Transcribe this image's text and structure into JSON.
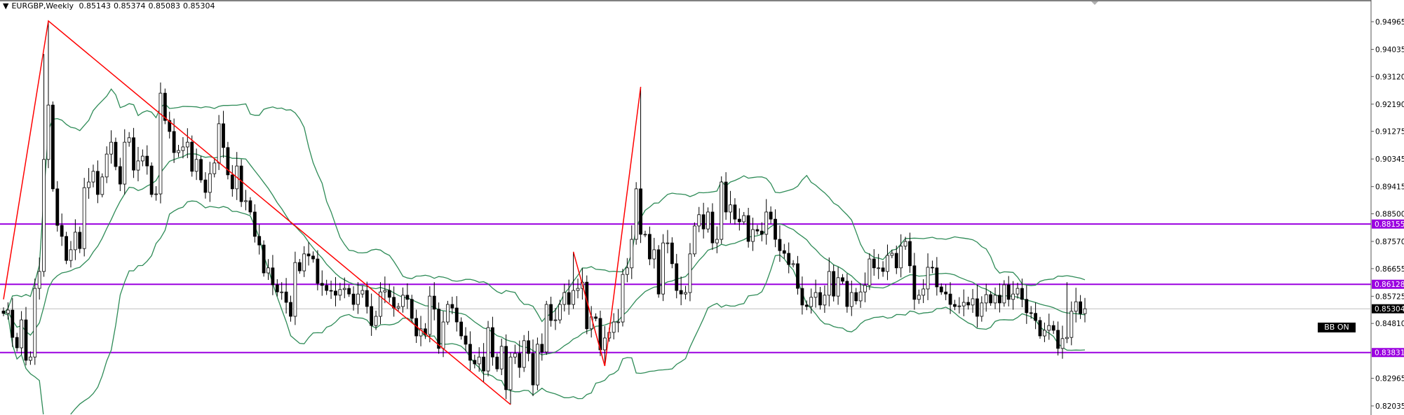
{
  "header": {
    "symbol": "EURGBP,Weekly",
    "ohlc": [
      "0.85143",
      "0.85374",
      "0.85083",
      "0.85304"
    ]
  },
  "badge": {
    "label": "BB ON"
  },
  "colors": {
    "level_line": "#9b00e0",
    "zigzag": "#ff0000",
    "bollinger": "#2e8b57",
    "bull_body": "#ffffff",
    "bear_body": "#000000",
    "current_price_line": "#c0c0c0"
  },
  "chart_data": {
    "type": "candlestick",
    "symbol": "EURGBP",
    "timeframe": "Weekly",
    "ylim": [
      0.818,
      0.957
    ],
    "y_ticks": [
      "0.94965",
      "0.94035",
      "0.93120",
      "0.92190",
      "0.91275",
      "0.90345",
      "0.89415",
      "0.88500",
      "0.87570",
      "0.86655",
      "0.85725",
      "0.84810",
      "0.82965",
      "0.82035"
    ],
    "last_price": "0.85304",
    "levels": [
      "0.88155",
      "0.86128",
      "0.83831"
    ],
    "closes": [
      0.8515,
      0.8526,
      0.8434,
      0.8399,
      0.8493,
      0.8357,
      0.8368,
      0.8599,
      0.8656,
      0.9033,
      0.9216,
      0.8934,
      0.8811,
      0.8774,
      0.8693,
      0.8729,
      0.8788,
      0.8733,
      0.8938,
      0.8957,
      0.8993,
      0.8915,
      0.8974,
      0.9051,
      0.9091,
      0.9009,
      0.895,
      0.9091,
      0.9106,
      0.8997,
      0.9028,
      0.9044,
      0.9011,
      0.8915,
      0.8917,
      0.9256,
      0.9164,
      0.9127,
      0.9056,
      0.9063,
      0.9075,
      0.9091,
      0.8993,
      0.9033,
      0.8964,
      0.8922,
      0.8985,
      0.9021,
      0.9153,
      0.9073,
      0.8981,
      0.8934,
      0.9011,
      0.8891,
      0.8894,
      0.8856,
      0.8774,
      0.8745,
      0.8651,
      0.8668,
      0.8611,
      0.8587,
      0.8587,
      0.8552,
      0.8505,
      0.8686,
      0.8658,
      0.8715,
      0.8708,
      0.8698,
      0.8616,
      0.8609,
      0.8592,
      0.859,
      0.8576,
      0.8595,
      0.8599,
      0.858,
      0.8545,
      0.858,
      0.8592,
      0.8538,
      0.8474,
      0.8505,
      0.8587,
      0.8592,
      0.8569,
      0.8533,
      0.8538,
      0.8576,
      0.8562,
      0.8498,
      0.8439,
      0.8463,
      0.8444,
      0.8573,
      0.8529,
      0.8397,
      0.8486,
      0.8545,
      0.8533,
      0.8486,
      0.8439,
      0.8411,
      0.8357,
      0.8345,
      0.8368,
      0.8321,
      0.8467,
      0.8368,
      0.8328,
      0.8404,
      0.8258,
      0.8368,
      0.838,
      0.8333,
      0.8423,
      0.838,
      0.8274,
      0.8411,
      0.8385,
      0.8545,
      0.8491,
      0.8493,
      0.8545,
      0.8585,
      0.8545,
      0.8592,
      0.8599,
      0.862,
      0.8463,
      0.8503,
      0.8498,
      0.8392,
      0.8432,
      0.8451,
      0.8486,
      0.8486,
      0.8646,
      0.8668,
      0.8764,
      0.8934,
      0.8781,
      0.8781,
      0.8698,
      0.8729,
      0.858,
      0.8752,
      0.8752,
      0.8682,
      0.8592,
      0.858,
      0.8585,
      0.8715,
      0.8809,
      0.8847,
      0.8799,
      0.8856,
      0.8752,
      0.8764,
      0.8957,
      0.8856,
      0.888,
      0.8832,
      0.8823,
      0.8844,
      0.8757,
      0.8797,
      0.8792,
      0.8781,
      0.8856,
      0.8832,
      0.8764,
      0.8726,
      0.8717,
      0.8679,
      0.8682,
      0.8599,
      0.8543,
      0.8538,
      0.8569,
      0.8585,
      0.8543,
      0.8576,
      0.8656,
      0.8573,
      0.8635,
      0.8623,
      0.8538,
      0.8585,
      0.8557,
      0.8587,
      0.8609,
      0.8698,
      0.8668,
      0.8668,
      0.8656,
      0.871,
      0.8717,
      0.8668,
      0.8741,
      0.8757,
      0.8675,
      0.8562,
      0.8576,
      0.8597,
      0.867,
      0.8668,
      0.8604,
      0.8587,
      0.858,
      0.8545,
      0.8538,
      0.854,
      0.8552,
      0.8543,
      0.8564,
      0.8505,
      0.855,
      0.8578,
      0.855,
      0.8576,
      0.855,
      0.8611,
      0.8562,
      0.858,
      0.8599,
      0.8562,
      0.8517,
      0.8515,
      0.8491,
      0.8439,
      0.8458,
      0.8474,
      0.8458,
      0.8397,
      0.843,
      0.8434,
      0.8522,
      0.8554,
      0.8514,
      0.85304
    ],
    "notable_highs": {
      "9": 0.9388,
      "10": 0.9499,
      "35": 0.9292,
      "127": 0.8722,
      "142": 0.9277,
      "237": 0.862
    },
    "notable_lows": {
      "5": 0.834,
      "113": 0.8208,
      "134": 0.8338
    },
    "indicators": {
      "bollinger_bands": {
        "period": 20,
        "deviations": 2
      }
    },
    "zigzag_segments": [
      [
        [
          0,
          0.8562
        ],
        [
          10,
          0.9499
        ],
        [
          113,
          0.8208
        ]
      ],
      [
        [
          127,
          0.8722
        ],
        [
          134,
          0.8338
        ],
        [
          142,
          0.9277
        ]
      ]
    ]
  }
}
